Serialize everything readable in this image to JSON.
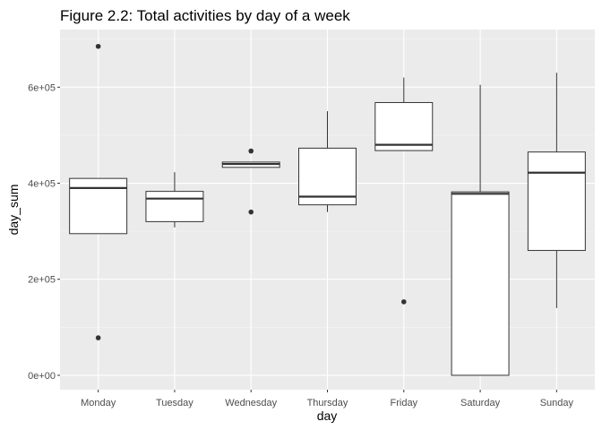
{
  "chart_data": {
    "type": "boxplot",
    "title": "Figure 2.2: Total activities by day of a week",
    "xlabel": "day",
    "ylabel": "day_sum",
    "categories": [
      "Monday",
      "Tuesday",
      "Wednesday",
      "Thursday",
      "Friday",
      "Saturday",
      "Sunday"
    ],
    "ylim": [
      -30000,
      720000
    ],
    "y_ticks": [
      {
        "value": 0,
        "label": "0e+00"
      },
      {
        "value": 200000,
        "label": "2e+05"
      },
      {
        "value": 400000,
        "label": "4e+05"
      },
      {
        "value": 600000,
        "label": "6e+05"
      }
    ],
    "boxes": [
      {
        "category": "Monday",
        "lower_whisker": 295000,
        "q1": 295000,
        "median": 390000,
        "q3": 410000,
        "upper_whisker": 410000,
        "outliers": [
          685000,
          78000
        ]
      },
      {
        "category": "Tuesday",
        "lower_whisker": 308000,
        "q1": 320000,
        "median": 368000,
        "q3": 383000,
        "upper_whisker": 423000,
        "outliers": []
      },
      {
        "category": "Wednesday",
        "lower_whisker": 433000,
        "q1": 433000,
        "median": 440000,
        "q3": 444000,
        "upper_whisker": 444000,
        "outliers": [
          467000,
          340000
        ]
      },
      {
        "category": "Thursday",
        "lower_whisker": 340000,
        "q1": 355000,
        "median": 372000,
        "q3": 473000,
        "upper_whisker": 550000,
        "outliers": []
      },
      {
        "category": "Friday",
        "lower_whisker": 468000,
        "q1": 468000,
        "median": 480000,
        "q3": 568000,
        "upper_whisker": 620000,
        "outliers": [
          153000
        ]
      },
      {
        "category": "Saturday",
        "lower_whisker": 0,
        "q1": 0,
        "median": 378000,
        "q3": 382000,
        "upper_whisker": 605000,
        "outliers": []
      },
      {
        "category": "Sunday",
        "lower_whisker": 140000,
        "q1": 260000,
        "median": 422000,
        "q3": 465000,
        "upper_whisker": 630000,
        "outliers": []
      }
    ],
    "grid": true,
    "legend": "none",
    "colors": {
      "panel_background": "#ebebeb",
      "grid_major": "#ffffff",
      "grid_minor": "#f5f5f5",
      "box_fill": "#ffffff",
      "box_line": "#333333",
      "outlier": "#333333"
    }
  }
}
